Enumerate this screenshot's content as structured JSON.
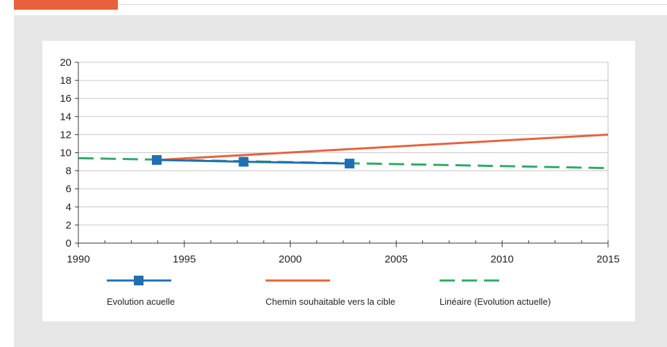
{
  "chart_data": {
    "type": "line",
    "title": "",
    "xlabel": "",
    "ylabel": "",
    "xlim": [
      1990,
      2015
    ],
    "ylim": [
      0,
      20
    ],
    "x_ticks": [
      1990,
      1995,
      2000,
      2005,
      2010,
      2015
    ],
    "y_ticks": [
      0,
      2,
      4,
      6,
      8,
      10,
      12,
      14,
      16,
      18,
      20
    ],
    "grid": "horizontal",
    "legend_position": "bottom",
    "series": [
      {
        "name": "Evolution acuelle",
        "color": "#1f6fb5",
        "style": "solid-with-square-markers",
        "x": [
          1993.7,
          1997.8,
          2002.8
        ],
        "y": [
          9.2,
          9.0,
          8.8
        ]
      },
      {
        "name": "Chemin souhaitable vers la cible",
        "color": "#e8613c",
        "style": "solid",
        "x": [
          1993.7,
          2015
        ],
        "y": [
          9.2,
          12.0
        ]
      },
      {
        "name": "Linéaire (Evolution actuelle)",
        "color": "#2bab62",
        "style": "dashed",
        "x": [
          1990,
          2015
        ],
        "y": [
          9.4,
          8.3
        ]
      }
    ]
  }
}
